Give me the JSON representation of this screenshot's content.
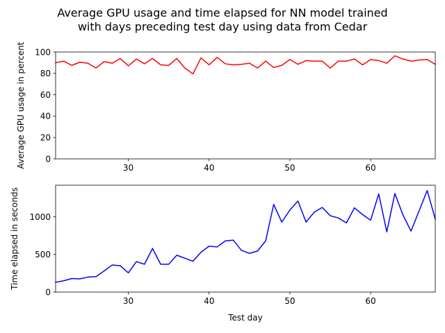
{
  "title_line1": "Average GPU usage and time elapsed for NN model trained",
  "title_line2": "with days preceding test day using data from Cedar",
  "chart_data": [
    {
      "type": "line",
      "ylabel": "Average GPU usage in percent",
      "xlabel": "",
      "xlim": [
        21,
        68
      ],
      "ylim": [
        0,
        100
      ],
      "xticks": [
        30,
        40,
        50,
        60
      ],
      "yticks": [
        0,
        20,
        40,
        60,
        80,
        100
      ],
      "color": "#ff0000",
      "x": [
        21,
        22,
        23,
        24,
        25,
        26,
        27,
        28,
        29,
        30,
        31,
        32,
        33,
        34,
        35,
        36,
        37,
        38,
        39,
        40,
        41,
        42,
        43,
        44,
        45,
        46,
        47,
        48,
        49,
        50,
        51,
        52,
        53,
        54,
        55,
        56,
        57,
        58,
        59,
        60,
        61,
        62,
        63,
        64,
        65,
        66,
        67,
        68
      ],
      "y": [
        90,
        91.5,
        87.5,
        90.5,
        89.5,
        85,
        91,
        89.5,
        94,
        87,
        93.5,
        89,
        94,
        88,
        87.5,
        94,
        85,
        79.5,
        94.5,
        88,
        95,
        89,
        88,
        88.5,
        89.5,
        85,
        91.5,
        85.5,
        87.5,
        93,
        88.5,
        92,
        91.5,
        91.5,
        85,
        91.5,
        91.5,
        93.5,
        88,
        93,
        92,
        89.5,
        96.5,
        93.5,
        91.5,
        92.5,
        93,
        88.5
      ]
    },
    {
      "type": "line",
      "ylabel": "Time elapsed in seconds",
      "xlabel": "Test day",
      "xlim": [
        21,
        68
      ],
      "ylim": [
        0,
        1420
      ],
      "xticks": [
        30,
        40,
        50,
        60
      ],
      "yticks": [
        0,
        500,
        1000
      ],
      "color": "#0000ff",
      "x": [
        21,
        22,
        23,
        24,
        25,
        26,
        27,
        28,
        29,
        30,
        31,
        32,
        33,
        34,
        35,
        36,
        37,
        38,
        39,
        40,
        41,
        42,
        43,
        44,
        45,
        46,
        47,
        48,
        49,
        50,
        51,
        52,
        53,
        54,
        55,
        56,
        57,
        58,
        59,
        60,
        61,
        62,
        63,
        64,
        65,
        66,
        67,
        68
      ],
      "y": [
        130,
        150,
        180,
        175,
        200,
        205,
        280,
        360,
        350,
        255,
        405,
        370,
        580,
        370,
        370,
        490,
        450,
        410,
        530,
        610,
        600,
        680,
        690,
        555,
        515,
        545,
        680,
        1165,
        930,
        1090,
        1210,
        930,
        1060,
        1125,
        1015,
        985,
        920,
        1120,
        1030,
        955,
        1305,
        800,
        1310,
        1025,
        810,
        1080,
        1350,
        970
      ]
    }
  ]
}
